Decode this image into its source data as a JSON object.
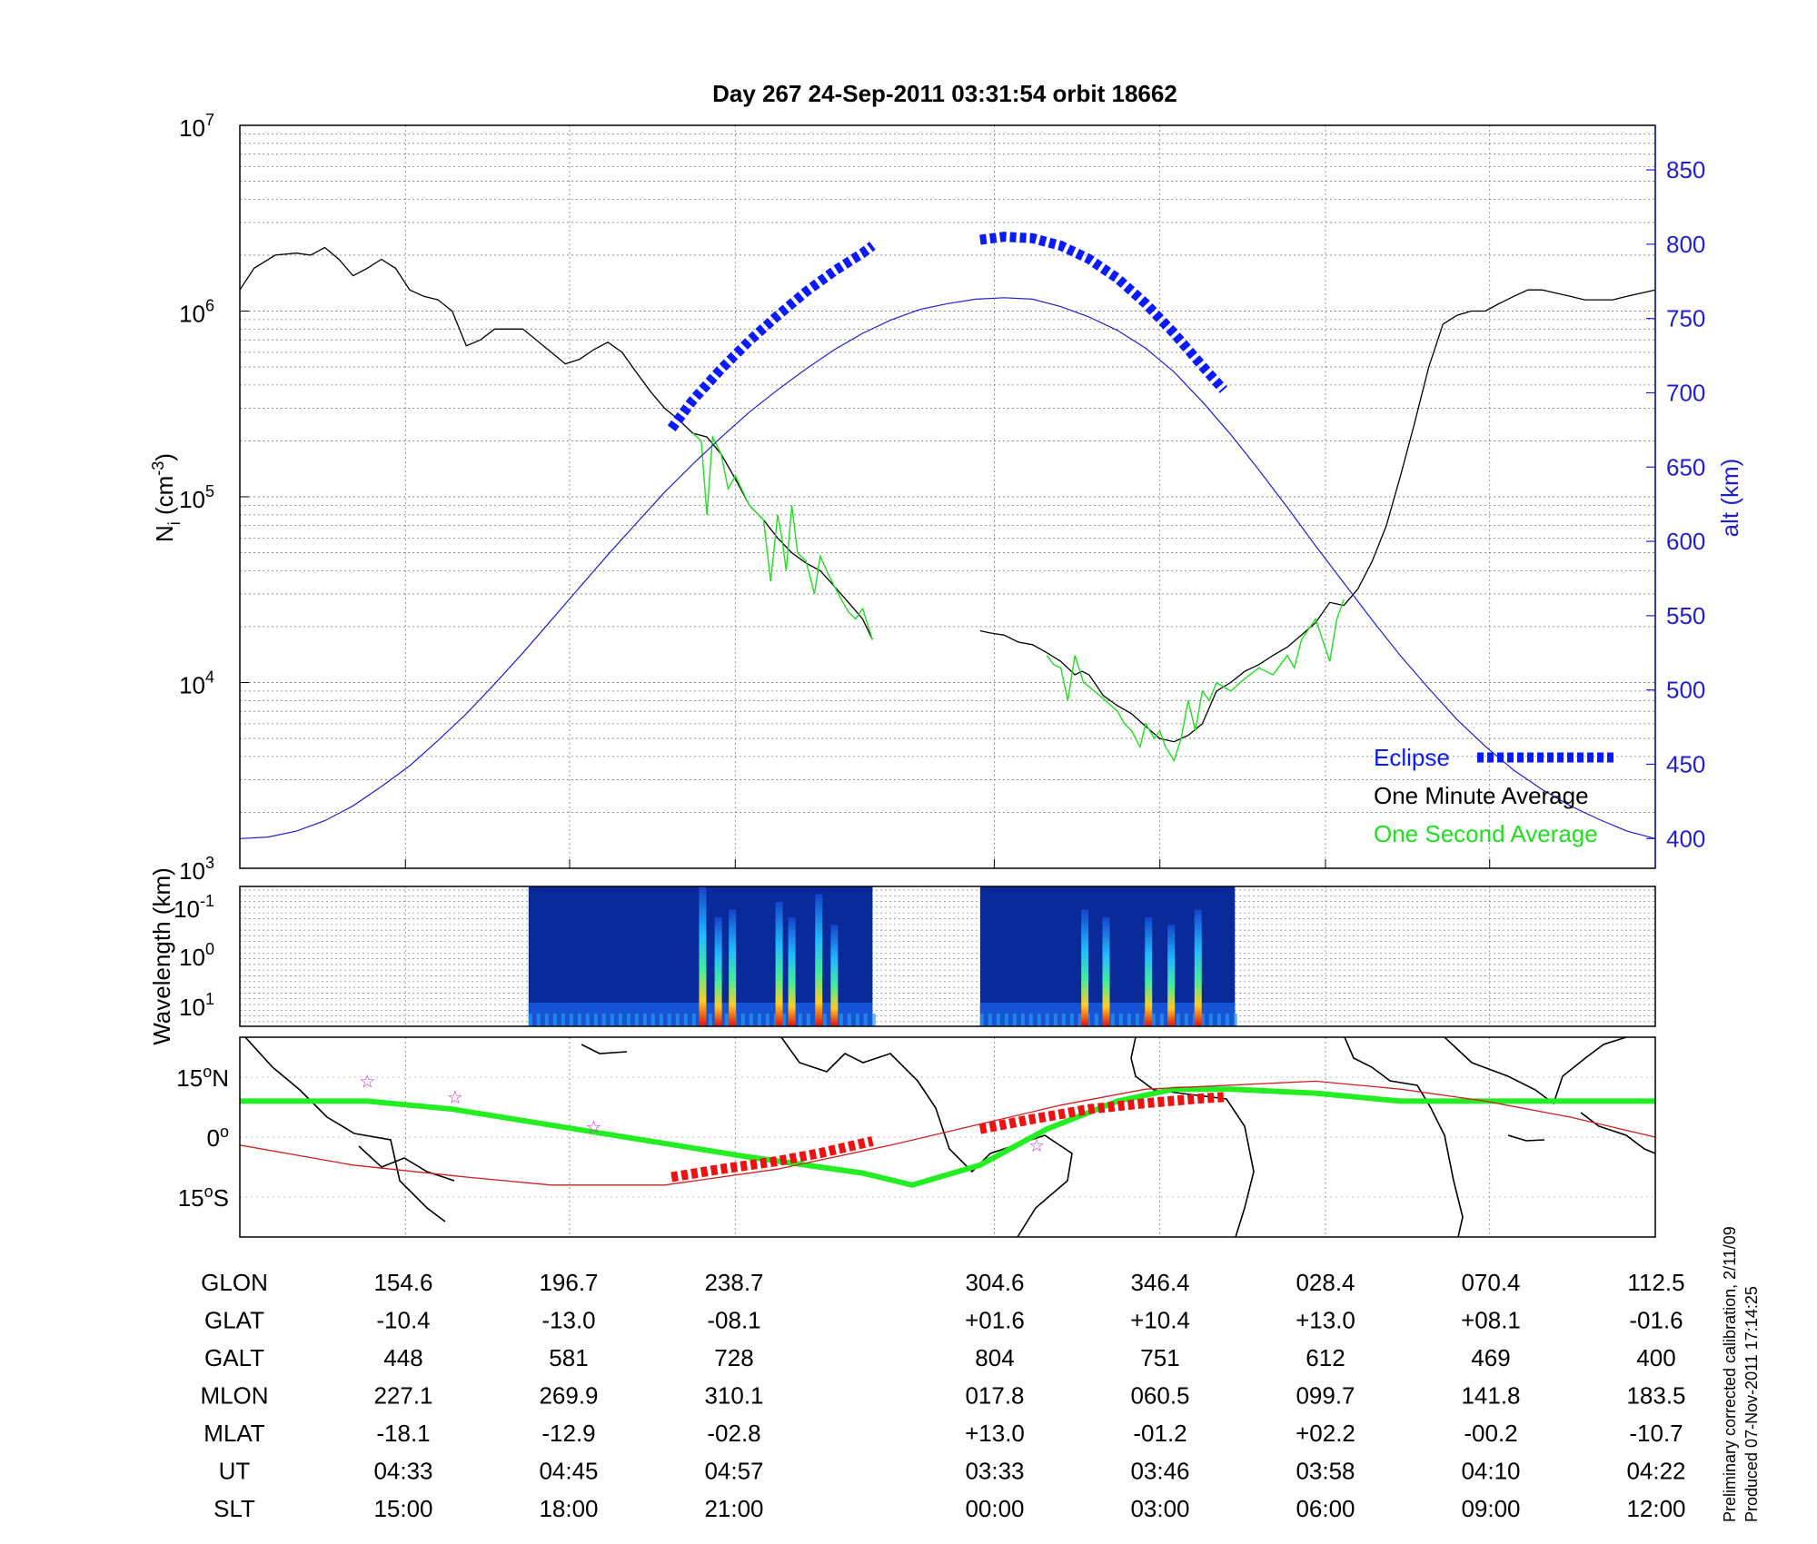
{
  "title": "Day 267  24-Sep-2011 03:31:54   orbit 18662",
  "colors": {
    "axis": "#000000",
    "grid": "#7f7f7f",
    "altitude": "#1f1fcf",
    "eclipse": "#0a1aff",
    "one_minute": "#000000",
    "one_second": "#22dd22",
    "track_green": "#22ee22",
    "track_eclipse": "#ee1111",
    "track_red_line": "#cc2222",
    "star": "#cc33cc",
    "spectrogram_bg": "#0a2a9a"
  },
  "chart_data": [
    {
      "id": "density",
      "type": "line",
      "ylabel": "N_i (cm^-3)",
      "ylabel_right": "alt (km)",
      "yscale": "log",
      "ylim": [
        1000,
        10000000
      ],
      "y_ticks": [
        {
          "base": "10",
          "exp": "3"
        },
        {
          "base": "10",
          "exp": "4"
        },
        {
          "base": "10",
          "exp": "5"
        },
        {
          "base": "10",
          "exp": "6"
        },
        {
          "base": "10",
          "exp": "7"
        }
      ],
      "y2lim": [
        380,
        880
      ],
      "y2_ticks": [
        "400",
        "450",
        "500",
        "550",
        "600",
        "650",
        "700",
        "750",
        "800",
        "850"
      ],
      "x_domain": [
        0,
        100
      ],
      "x_tick_positions": [
        11.7,
        23.3,
        35.0,
        53.3,
        65.0,
        76.7,
        88.3,
        100.0
      ],
      "grid": true,
      "legend": {
        "placement": "bottom-right",
        "entries": [
          {
            "label": "Eclipse",
            "color": "#0a1aff",
            "style": "thick-dash"
          },
          {
            "label": "One Minute Average",
            "color": "#000000",
            "style": "line"
          },
          {
            "label": "One Second Average",
            "color": "#22dd22",
            "style": "line"
          }
        ]
      },
      "series": [
        {
          "name": "One Minute Average",
          "segments": [
            {
              "x": [
                0,
                1,
                2.5,
                4,
                5,
                6,
                7,
                8,
                9,
                10,
                11,
                12,
                13,
                14,
                15,
                16,
                17,
                18,
                20,
                22,
                23,
                24,
                25,
                26,
                27,
                28,
                29,
                30,
                31,
                32,
                33,
                34,
                35,
                36,
                37,
                38,
                39,
                40,
                41,
                42,
                43,
                44,
                44.7
              ],
              "y": [
                1300000,
                1700000,
                2000000,
                2050000,
                2000000,
                2200000,
                1900000,
                1550000,
                1700000,
                1900000,
                1700000,
                1300000,
                1200000,
                1150000,
                1000000,
                650000,
                700000,
                800000,
                800000,
                600000,
                520000,
                550000,
                620000,
                680000,
                600000,
                470000,
                370000,
                300000,
                260000,
                220000,
                210000,
                170000,
                125000,
                90000,
                75000,
                60000,
                50000,
                44000,
                40000,
                33000,
                27000,
                22000,
                17000
              ]
            },
            {
              "x": [
                52.3,
                53,
                54,
                55,
                56,
                57,
                58,
                59,
                59.5,
                60,
                61,
                62,
                63,
                64,
                65,
                66,
                67,
                68,
                69,
                70,
                71,
                72,
                73,
                74,
                75,
                76,
                77,
                78,
                79,
                80,
                81,
                82,
                83,
                84,
                85,
                86,
                87,
                88,
                89,
                90,
                91,
                92,
                93,
                94,
                95,
                96,
                97,
                98,
                99,
                100
              ],
              "y": [
                19000,
                18500,
                18000,
                16500,
                16000,
                14500,
                13000,
                11000,
                11500,
                11000,
                8500,
                7500,
                6800,
                5800,
                5000,
                4800,
                5200,
                6000,
                9000,
                10000,
                11500,
                12500,
                14000,
                15500,
                18000,
                21000,
                27000,
                26000,
                32000,
                45000,
                70000,
                130000,
                250000,
                500000,
                850000,
                950000,
                1000000,
                1000000,
                1100000,
                1200000,
                1300000,
                1300000,
                1250000,
                1200000,
                1150000,
                1150000,
                1150000,
                1200000,
                1250000,
                1300000
              ]
            }
          ]
        },
        {
          "name": "One Second Average",
          "segments": [
            {
              "x": [
                32,
                32.6,
                33,
                33.4,
                34,
                34.5,
                35,
                36,
                37,
                37.5,
                38,
                38.3,
                38.6,
                39,
                39.4,
                40,
                40.6,
                41,
                41.6,
                42,
                42.5,
                43,
                43.5,
                44,
                44.7
              ],
              "y": [
                220000,
                200000,
                80000,
                210000,
                170000,
                110000,
                130000,
                90000,
                75000,
                35000,
                80000,
                60000,
                40000,
                90000,
                50000,
                45000,
                30000,
                48000,
                38000,
                33000,
                28000,
                24000,
                22000,
                25000,
                17000
              ]
            },
            {
              "x": [
                57,
                57.5,
                58,
                58.5,
                59,
                59.6,
                60,
                61,
                62,
                62.5,
                63,
                63.6,
                64,
                64.6,
                65,
                65.4,
                66,
                66.5,
                67,
                67.5,
                68,
                68.5,
                69,
                70,
                71,
                72,
                73,
                74,
                74.5,
                75,
                76,
                77,
                77.5,
                78
              ],
              "y": [
                14000,
                12500,
                12000,
                8000,
                14000,
                10000,
                9500,
                8200,
                7000,
                6000,
                5500,
                4500,
                6000,
                5000,
                5500,
                4500,
                3800,
                5000,
                8000,
                5500,
                9000,
                8000,
                10000,
                9000,
                10500,
                12000,
                11000,
                14000,
                12000,
                17000,
                22000,
                13000,
                22000,
                28000
              ]
            }
          ]
        },
        {
          "name": "Altitude",
          "axis": "right",
          "segments": [
            {
              "x": [
                0,
                2,
                4,
                6,
                8,
                10,
                12,
                14,
                16,
                18,
                20,
                22,
                24,
                26,
                28,
                30,
                32,
                34,
                36,
                38,
                40,
                42,
                44,
                46,
                48,
                50,
                52,
                54,
                56,
                58,
                60,
                62,
                64,
                66,
                68,
                70,
                72,
                74,
                76,
                78,
                80,
                82,
                84,
                86,
                88,
                90,
                92,
                94,
                96,
                98,
                100
              ],
              "y": [
                400,
                401,
                405,
                412,
                422,
                435,
                449,
                466,
                484,
                504,
                525,
                547,
                569,
                591,
                612,
                633,
                652,
                670,
                687,
                702,
                716,
                729,
                740,
                749,
                756,
                760,
                763,
                764,
                763,
                758,
                751,
                742,
                730,
                714,
                694,
                672,
                648,
                623,
                597,
                572,
                547,
                523,
                501,
                480,
                462,
                446,
                433,
                422,
                413,
                405,
                400
              ]
            }
          ]
        },
        {
          "name": "Eclipse",
          "axis": "right",
          "segments": [
            {
              "x": [
                30.5,
                32,
                34,
                36,
                38,
                40,
                42,
                44,
                44.7
              ],
              "y": [
                676,
                695,
                716,
                735,
                752,
                768,
                782,
                794,
                799
              ]
            },
            {
              "x": [
                52.3,
                54,
                56,
                58,
                60,
                62,
                64,
                66,
                68,
                69.5
              ],
              "y": [
                803,
                805,
                804,
                799,
                790,
                777,
                760,
                740,
                718,
                702
              ]
            }
          ]
        }
      ]
    },
    {
      "id": "spectrogram",
      "type": "heatmap",
      "ylabel": "Wavelength (km)",
      "y_ticks": [
        {
          "base": "10",
          "exp": "-1"
        },
        {
          "base": "10",
          "exp": "0"
        },
        {
          "base": "10",
          "exp": "1"
        }
      ],
      "grid": true,
      "blocks_x": [
        [
          20.4,
          44.7
        ],
        [
          52.3,
          70.3
        ]
      ],
      "bursts": [
        {
          "x": 32.7,
          "strength": 1.0
        },
        {
          "x": 33.8,
          "strength": 0.6
        },
        {
          "x": 34.8,
          "strength": 0.7
        },
        {
          "x": 38.1,
          "strength": 0.8
        },
        {
          "x": 39.0,
          "strength": 0.6
        },
        {
          "x": 40.9,
          "strength": 0.9
        },
        {
          "x": 42.0,
          "strength": 0.5
        },
        {
          "x": 59.7,
          "strength": 0.7
        },
        {
          "x": 61.2,
          "strength": 0.6
        },
        {
          "x": 64.2,
          "strength": 0.6
        },
        {
          "x": 65.8,
          "strength": 0.5
        },
        {
          "x": 67.7,
          "strength": 0.7
        }
      ]
    },
    {
      "id": "map",
      "type": "line",
      "y_ticks": [
        {
          "deg": "15",
          "hemi": "N"
        },
        {
          "deg": "0",
          "hemi": ""
        },
        {
          "deg": "15",
          "hemi": "S"
        }
      ],
      "ylim": [
        -25,
        25
      ],
      "series": [
        {
          "name": "track",
          "x": [
            0,
            9,
            15,
            22,
            29,
            36,
            44,
            47.5,
            52.3,
            57,
            62,
            66,
            70,
            76,
            82,
            88,
            94,
            100
          ],
          "y": [
            9,
            9,
            7,
            3,
            -1,
            -5,
            -9,
            -12,
            -7,
            2,
            9,
            12,
            12,
            11,
            9,
            9,
            9,
            9
          ]
        },
        {
          "name": "magnetic equator",
          "x": [
            0,
            8,
            16,
            22,
            30,
            38,
            46,
            52,
            58,
            64,
            70,
            76,
            82,
            88,
            94,
            100
          ],
          "y": [
            -2,
            -7,
            -10,
            -12,
            -12,
            -8,
            -2,
            3,
            8,
            12,
            13,
            14,
            12,
            9,
            5,
            0
          ]
        },
        {
          "name": "eclipse track",
          "segments": [
            {
              "x": [
                30.5,
                34,
                38,
                41,
                44.7
              ],
              "y": [
                -10,
                -8,
                -6,
                -4,
                -1
              ]
            },
            {
              "x": [
                52.3,
                56,
                60,
                64,
                68,
                69.5
              ],
              "y": [
                2,
                4.5,
                7,
                8.5,
                9.7,
                10
              ]
            }
          ]
        }
      ],
      "stars": [
        {
          "x": 9.0,
          "y": 14
        },
        {
          "x": 15.2,
          "y": 10
        },
        {
          "x": 25.0,
          "y": 2.5
        },
        {
          "x": 56.3,
          "y": -2
        }
      ]
    }
  ],
  "table": {
    "rows": [
      {
        "label": "GLON",
        "values": [
          "154.6",
          "196.7",
          "238.7",
          "304.6",
          "346.4",
          "028.4",
          "070.4",
          "112.5"
        ]
      },
      {
        "label": "GLAT",
        "values": [
          "-10.4",
          "-13.0",
          "-08.1",
          "+01.6",
          "+10.4",
          "+13.0",
          "+08.1",
          "-01.6"
        ]
      },
      {
        "label": "GALT",
        "values": [
          "448",
          "581",
          "728",
          "804",
          "751",
          "612",
          "469",
          "400"
        ]
      },
      {
        "label": "MLON",
        "values": [
          "227.1",
          "269.9",
          "310.1",
          "017.8",
          "060.5",
          "099.7",
          "141.8",
          "183.5"
        ]
      },
      {
        "label": "MLAT",
        "values": [
          "-18.1",
          "-12.9",
          "-02.8",
          "+13.0",
          "-01.2",
          "+02.2",
          "-00.2",
          "-10.7"
        ]
      },
      {
        "label": "UT",
        "values": [
          "04:33",
          "04:45",
          "04:57",
          "03:33",
          "03:46",
          "03:58",
          "04:10",
          "04:22"
        ]
      },
      {
        "label": "SLT",
        "values": [
          "15:00",
          "18:00",
          "21:00",
          "00:00",
          "03:00",
          "06:00",
          "09:00",
          "12:00"
        ]
      }
    ]
  },
  "footnote": {
    "line1": "Preliminary corrected calibration, 2/11/09",
    "line2": "Produced 07-Nov-2011 17:14:25"
  }
}
